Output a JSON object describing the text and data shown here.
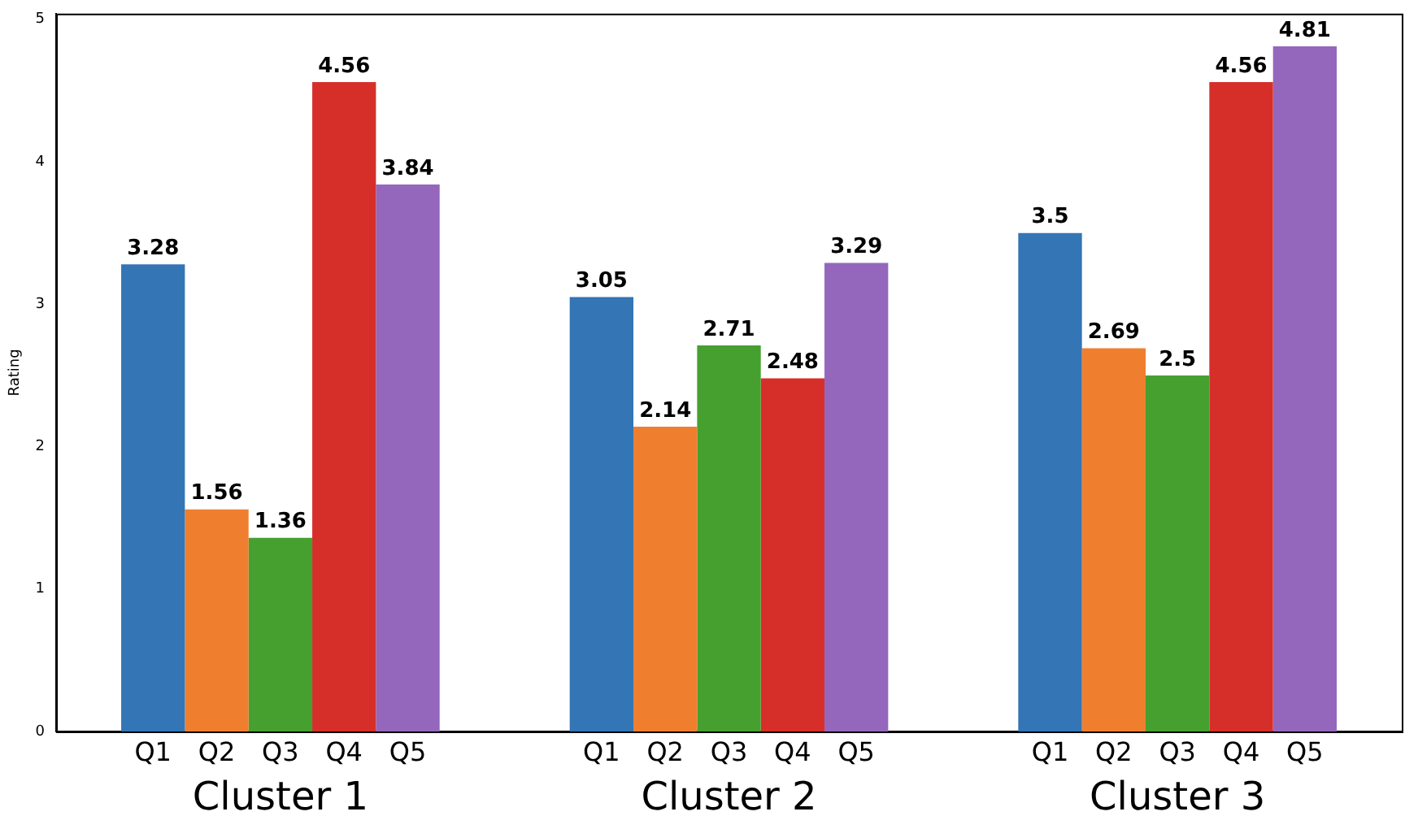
{
  "chart_data": {
    "type": "bar",
    "ylabel": "Rating",
    "categories": [
      "Cluster 1",
      "Cluster 2",
      "Cluster 3"
    ],
    "series": [
      {
        "name": "Q1",
        "color": "#3375b5",
        "values": [
          3.28,
          3.05,
          3.5
        ]
      },
      {
        "name": "Q2",
        "color": "#ef7f2f",
        "values": [
          1.56,
          2.14,
          2.69
        ]
      },
      {
        "name": "Q3",
        "color": "#46a02f",
        "values": [
          1.36,
          2.71,
          2.5
        ]
      },
      {
        "name": "Q4",
        "color": "#d62f2a",
        "values": [
          4.56,
          2.48,
          4.56
        ]
      },
      {
        "name": "Q5",
        "color": "#9467bd",
        "values": [
          3.84,
          3.29,
          4.81
        ]
      }
    ],
    "ylim": [
      0,
      5.04
    ],
    "yticks": [
      0,
      1,
      2,
      3,
      4,
      5
    ],
    "grid": false,
    "legend": false,
    "data_labels": true
  }
}
